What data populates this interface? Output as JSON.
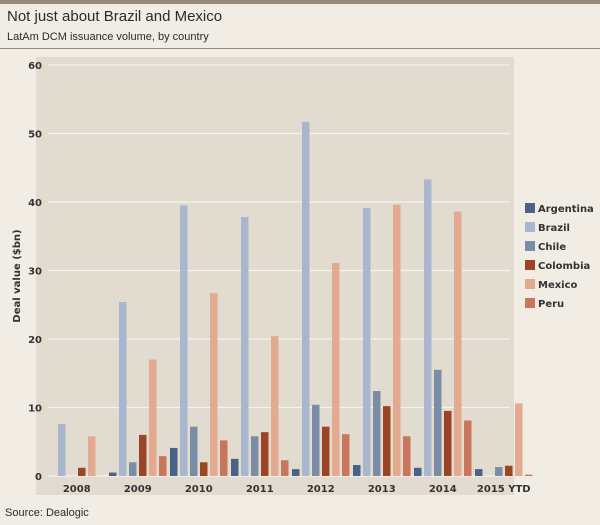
{
  "header": {
    "title": "Not just about Brazil and Mexico",
    "subtitle": "LatAm DCM issuance volume, by country"
  },
  "footer": {
    "source": "Source: Dealogic"
  },
  "chart_data": {
    "type": "bar",
    "title": "Not just about Brazil and Mexico",
    "subtitle": "LatAm DCM issuance volume, by country",
    "xlabel": "",
    "ylabel": "Deal value ($bn)",
    "ylim": [
      0,
      60
    ],
    "yticks": [
      0,
      10,
      20,
      30,
      40,
      50,
      60
    ],
    "grid": true,
    "legend_position": "right",
    "categories": [
      "2008",
      "2009",
      "2010",
      "2011",
      "2012",
      "2013",
      "2014",
      "2015 YTD"
    ],
    "series": [
      {
        "name": "Argentina",
        "color": "#4a6285",
        "values": [
          0,
          0.5,
          4.1,
          2.5,
          1.0,
          1.6,
          1.2,
          1.0
        ]
      },
      {
        "name": "Brazil",
        "color": "#a8b7cd",
        "values": [
          7.6,
          25.4,
          39.5,
          37.8,
          51.7,
          39.1,
          43.3,
          0
        ]
      },
      {
        "name": "Chile",
        "color": "#7a8ca6",
        "values": [
          0,
          2.0,
          7.2,
          5.8,
          10.4,
          12.4,
          15.5,
          1.3
        ]
      },
      {
        "name": "Colombia",
        "color": "#9c4526",
        "values": [
          1.2,
          6.0,
          2.0,
          6.4,
          7.2,
          10.2,
          9.5,
          1.5
        ]
      },
      {
        "name": "Mexico",
        "color": "#e4aa90",
        "values": [
          5.8,
          17.0,
          26.7,
          20.4,
          31.1,
          39.6,
          38.6,
          10.6
        ]
      },
      {
        "name": "Peru",
        "color": "#c9775c",
        "values": [
          0,
          2.9,
          5.2,
          2.3,
          6.1,
          5.8,
          8.1,
          0.2
        ]
      }
    ]
  }
}
